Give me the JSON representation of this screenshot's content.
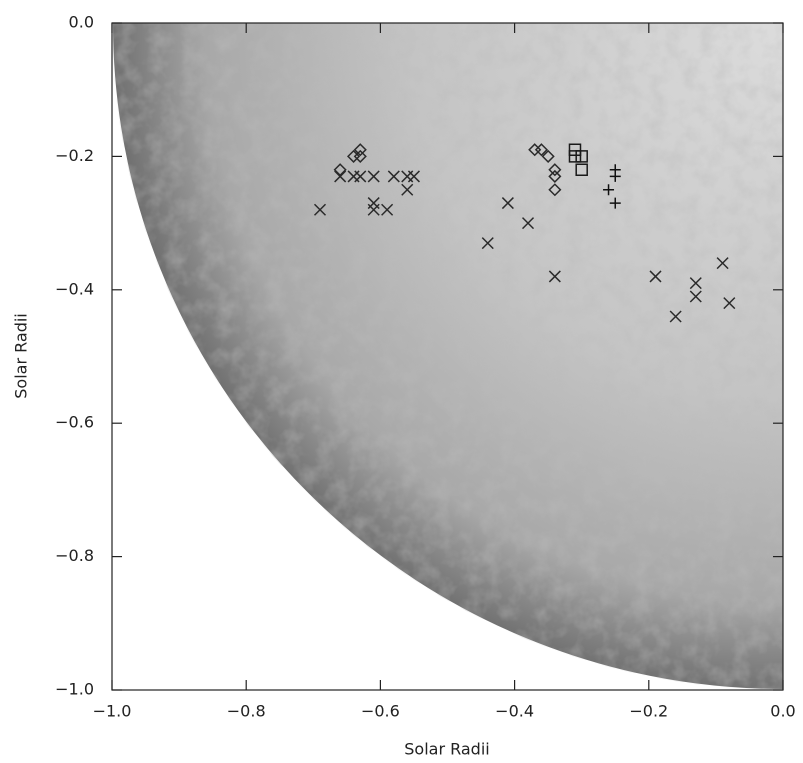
{
  "chart_data": {
    "type": "scatter",
    "xlabel": "Solar Radii",
    "ylabel": "Solar Radii",
    "xlim": [
      -1.0,
      0.0
    ],
    "ylim": [
      -1.0,
      0.0
    ],
    "xticks": [
      {
        "value": -1.0,
        "label": "−1.0"
      },
      {
        "value": -0.8,
        "label": "−0.8"
      },
      {
        "value": -0.6,
        "label": "−0.6"
      },
      {
        "value": -0.4,
        "label": "−0.4"
      },
      {
        "value": -0.2,
        "label": "−0.2"
      },
      {
        "value": 0.0,
        "label": "0.0"
      }
    ],
    "yticks": [
      {
        "value": -1.0,
        "label": "−1.0"
      },
      {
        "value": -0.8,
        "label": "−0.8"
      },
      {
        "value": -0.6,
        "label": "−0.6"
      },
      {
        "value": -0.4,
        "label": "−0.4"
      },
      {
        "value": -0.2,
        "label": "−0.2"
      },
      {
        "value": 0.0,
        "label": "0.0"
      }
    ],
    "series": [
      {
        "marker": "x",
        "color": "#2a2a2a",
        "x": [
          -0.69,
          -0.66,
          -0.64,
          -0.63,
          -0.61,
          -0.61,
          -0.61,
          -0.59,
          -0.58,
          -0.56,
          -0.55,
          -0.56,
          -0.41,
          -0.44,
          -0.38,
          -0.34,
          -0.19,
          -0.16,
          -0.13,
          -0.13,
          -0.09,
          -0.08
        ],
        "values": [
          -0.28,
          -0.23,
          -0.23,
          -0.23,
          -0.23,
          -0.27,
          -0.28,
          -0.28,
          -0.23,
          -0.23,
          -0.23,
          -0.25,
          -0.27,
          -0.33,
          -0.3,
          -0.38,
          -0.38,
          -0.44,
          -0.39,
          -0.41,
          -0.36,
          -0.42
        ]
      },
      {
        "marker": "diamond",
        "color": "#2a2a2a",
        "x": [
          -0.66,
          -0.64,
          -0.63,
          -0.63,
          -0.37,
          -0.36,
          -0.35,
          -0.34,
          -0.34,
          -0.34
        ],
        "values": [
          -0.22,
          -0.2,
          -0.19,
          -0.2,
          -0.19,
          -0.19,
          -0.2,
          -0.22,
          -0.23,
          -0.25
        ]
      },
      {
        "marker": "square",
        "color": "#1a1a1a",
        "x": [
          -0.31,
          -0.31,
          -0.3,
          -0.3
        ],
        "values": [
          -0.19,
          -0.2,
          -0.2,
          -0.22
        ]
      },
      {
        "marker": "plus",
        "color": "#111111",
        "x": [
          -0.25,
          -0.25,
          -0.26,
          -0.25
        ],
        "values": [
          -0.22,
          -0.23,
          -0.25,
          -0.27
        ]
      }
    ]
  }
}
